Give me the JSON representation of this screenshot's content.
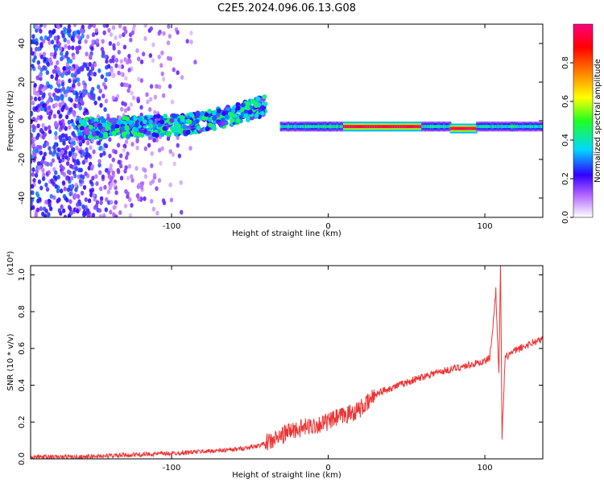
{
  "title": "C2E5.2024.096.06.13.G08",
  "chart_data": [
    {
      "type": "heatmap",
      "xlabel": "Height of straight line (km)",
      "ylabel": "Frequency (Hz)",
      "xlim": [
        -190,
        137
      ],
      "ylim": [
        -50,
        50
      ],
      "xticks": [
        -100,
        0,
        100
      ],
      "yticks": [
        -40,
        -20,
        0,
        20,
        40
      ],
      "colorbar": {
        "label": "Normalized spectral amplitude",
        "range": [
          0.0,
          1.0
        ],
        "ticks": [
          "0.0",
          "0.2",
          "0.4",
          "0.6",
          "0.8"
        ],
        "colormap": "rainbow (white-purple-blue-cyan-green-yellow-orange-red-magenta)"
      },
      "features": [
        {
          "description": "scattered low-amplitude noise speckle",
          "x_range": [
            -190,
            -100
          ],
          "amplitude": 0.15
        },
        {
          "description": "rising signal band",
          "x": [
            -160,
            -120,
            -90,
            -60,
            -40
          ],
          "freq": [
            -4,
            -3,
            -2,
            3,
            8
          ],
          "amplitude": 0.35
        },
        {
          "description": "narrow steady band near zero",
          "x_range": [
            -30,
            137
          ],
          "freq": -3,
          "amplitude": 0.4
        },
        {
          "description": "strong peak",
          "x_range": [
            10,
            60
          ],
          "freq": -2,
          "amplitude": 0.95
        },
        {
          "description": "strong peak",
          "x_range": [
            78,
            95
          ],
          "freq": -4,
          "amplitude": 0.95
        }
      ]
    },
    {
      "type": "line",
      "xlabel": "Height of straight line (km)",
      "ylabel": "SNR (10 * v/v)",
      "scale_label": "(x10⁴)",
      "xlim": [
        -190,
        137
      ],
      "ylim": [
        0.0,
        1.05
      ],
      "xticks": [
        -100,
        0,
        100
      ],
      "yticks": [
        "0.0",
        "0.2",
        "0.4",
        "0.6",
        "0.8",
        "1.0"
      ],
      "color": "#ee3333",
      "series": [
        {
          "x": [
            -190,
            -160,
            -130,
            -100,
            -80,
            -60,
            -45,
            -35,
            -25,
            -15,
            -5,
            0,
            5,
            15,
            20,
            25,
            28,
            30,
            35,
            45,
            55,
            65,
            75,
            85,
            95,
            100,
            103,
            105,
            107,
            109,
            110,
            111,
            113,
            116,
            120,
            125,
            130,
            137
          ],
          "y": [
            0.01,
            0.01,
            0.02,
            0.03,
            0.04,
            0.05,
            0.07,
            0.1,
            0.15,
            0.17,
            0.19,
            0.2,
            0.22,
            0.25,
            0.27,
            0.3,
            0.33,
            0.35,
            0.37,
            0.4,
            0.43,
            0.46,
            0.48,
            0.5,
            0.52,
            0.53,
            0.55,
            0.7,
            0.92,
            0.45,
            1.05,
            0.12,
            0.55,
            0.57,
            0.59,
            0.61,
            0.63,
            0.65
          ]
        }
      ]
    }
  ]
}
